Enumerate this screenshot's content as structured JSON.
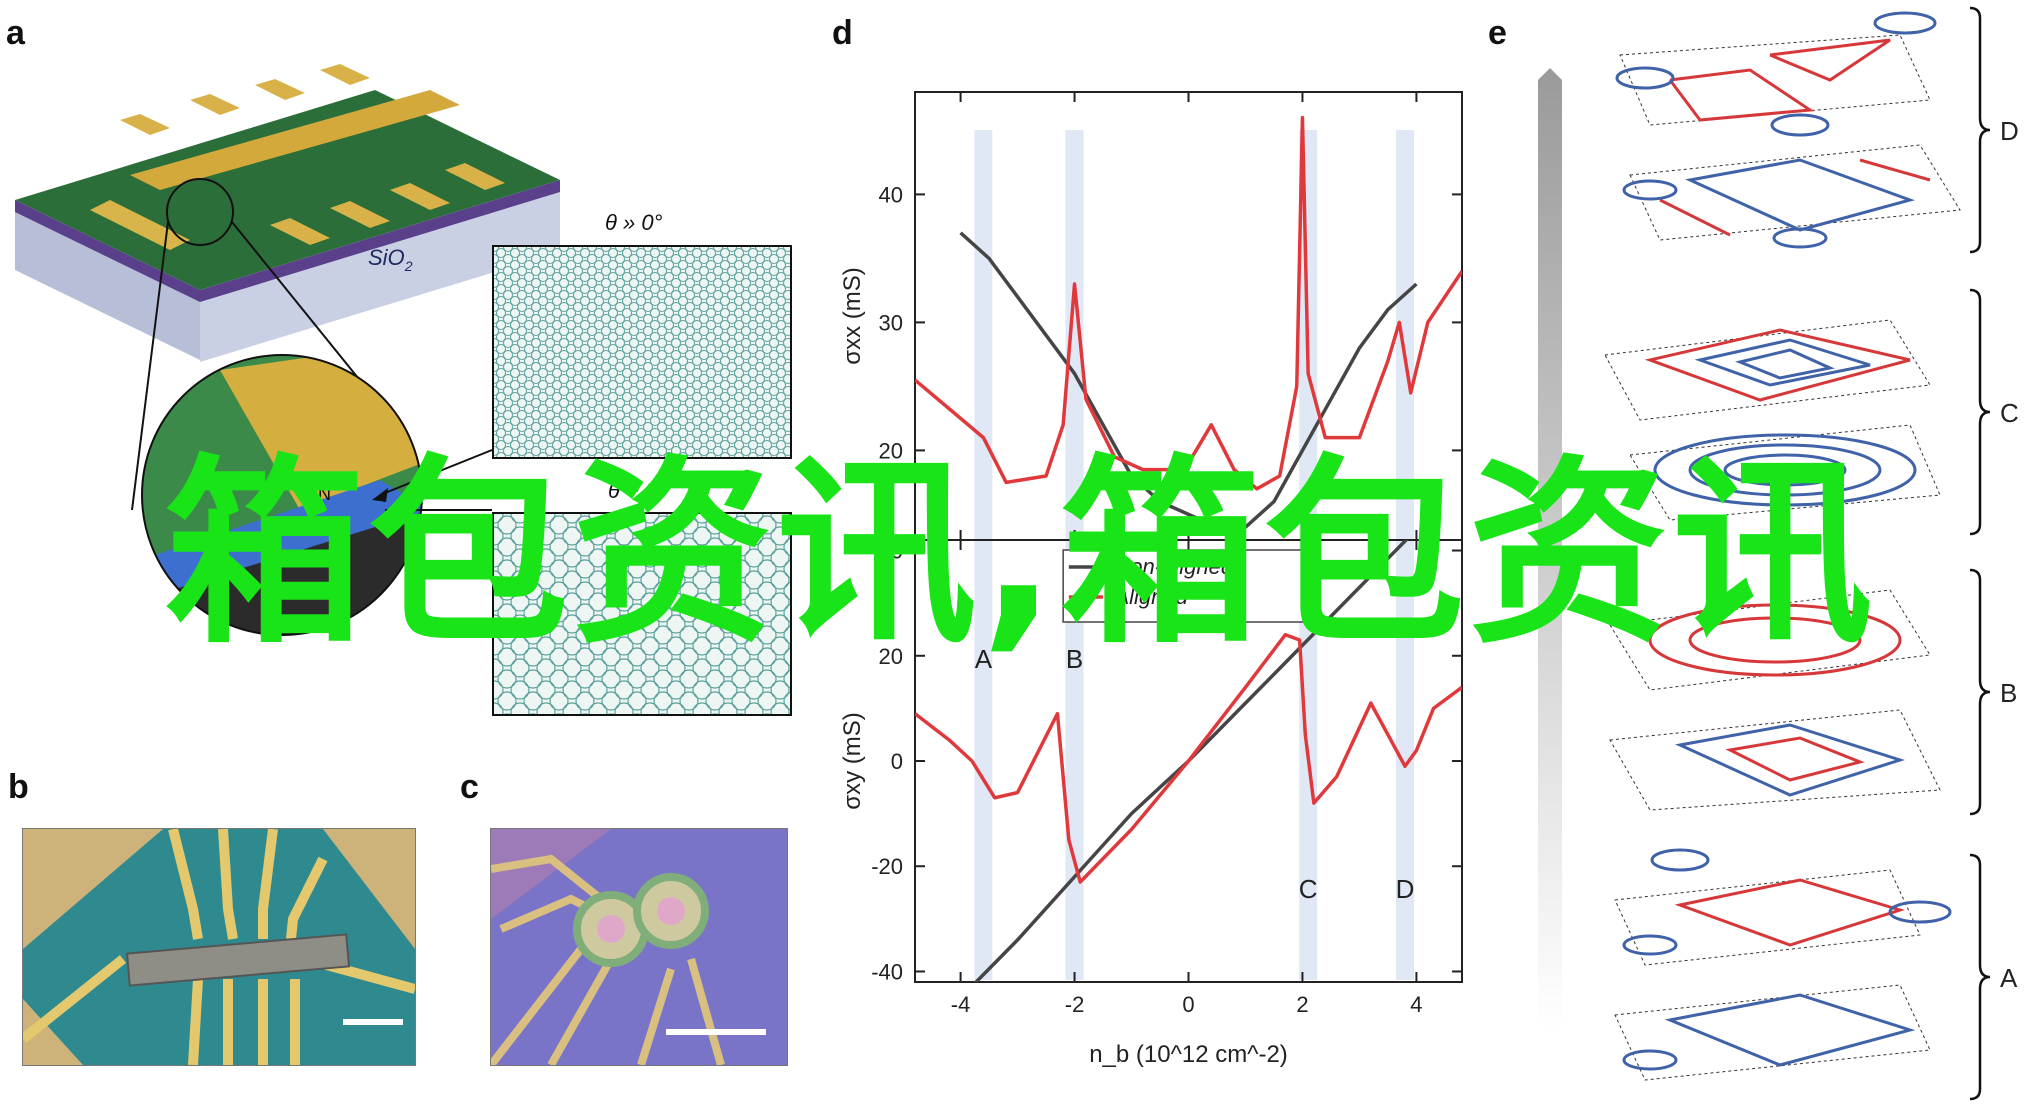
{
  "panels": {
    "a": {
      "letter": "a",
      "substrate_label": "SiO",
      "substrate_sub": "2",
      "zoom_labels": [
        "N",
        "r",
        "BN"
      ],
      "top_inset_title": "θ » 0°",
      "bottom_inset_title": "θ ~ 0°"
    },
    "b": {
      "letter": "b"
    },
    "c": {
      "letter": "c"
    },
    "d": {
      "letter": "d"
    },
    "e": {
      "letter": "e",
      "groups": [
        "D",
        "C",
        "B",
        "A"
      ]
    }
  },
  "legend": {
    "items": [
      "Non-aligned",
      "Aligned"
    ]
  },
  "watermark": "箱包资讯,箱包资讯",
  "chart_data": [
    {
      "type": "line",
      "title": "",
      "xlabel": "n_b (10^12 cm^-2)",
      "ylabel": "σxx (mS)",
      "xlim": [
        -4.8,
        4.8
      ],
      "ylim": [
        13,
        48
      ],
      "yticks": [
        20,
        30,
        40
      ],
      "series": [
        {
          "name": "Non-aligned",
          "color": "#454545",
          "x": [
            -4.0,
            -3.5,
            -3.0,
            -2.5,
            -2.0,
            -1.5,
            -1.0,
            -0.5,
            0.0,
            0.5,
            1.0,
            1.5,
            2.0,
            2.5,
            3.0,
            3.5,
            4.0
          ],
          "y": [
            37,
            35,
            32,
            29,
            26,
            22,
            18,
            16,
            15,
            14,
            14,
            16,
            20,
            24,
            28,
            31,
            33
          ]
        },
        {
          "name": "Aligned",
          "color": "#e0393c",
          "x": [
            -4.8,
            -4.0,
            -3.6,
            -3.2,
            -2.5,
            -2.2,
            -2.0,
            -1.8,
            -1.3,
            -0.8,
            -0.3,
            0.0,
            0.4,
            0.8,
            1.2,
            1.6,
            1.9,
            2.0,
            2.1,
            2.4,
            3.0,
            3.5,
            3.7,
            3.9,
            4.2,
            4.8
          ],
          "y": [
            25.5,
            22.5,
            21,
            17.5,
            18,
            22,
            33,
            24,
            19.5,
            18.5,
            18.5,
            19,
            22,
            18.5,
            17,
            18,
            25,
            46,
            26,
            21,
            21,
            27,
            30,
            24.5,
            30,
            34
          ]
        }
      ]
    },
    {
      "type": "line",
      "title": "",
      "xlabel": "n_b (10^12 cm^-2)",
      "ylabel": "σxy (mS)",
      "xlim": [
        -4.8,
        4.8
      ],
      "ylim": [
        -42,
        42
      ],
      "xticks": [
        -4,
        -2,
        0,
        2,
        4
      ],
      "yticks": [
        -40,
        -20,
        0,
        20,
        40
      ],
      "annotations": [
        "A",
        "B",
        "C",
        "D"
      ],
      "series": [
        {
          "name": "Non-aligned",
          "color": "#454545",
          "x": [
            -4.0,
            -3.0,
            -2.0,
            -1.0,
            0.0,
            1.0,
            2.0,
            3.0,
            4.0
          ],
          "y": [
            -45,
            -34,
            -22,
            -10,
            0,
            11,
            22,
            33,
            44
          ]
        },
        {
          "name": "Aligned",
          "color": "#e0393c",
          "x": [
            -4.8,
            -4.2,
            -3.8,
            -3.4,
            -3.0,
            -2.3,
            -2.1,
            -1.9,
            -1.0,
            0.0,
            1.0,
            1.7,
            1.95,
            2.05,
            2.2,
            2.6,
            3.2,
            3.6,
            3.8,
            4.0,
            4.3,
            4.8
          ],
          "y": [
            9,
            4,
            0,
            -7,
            -6,
            9,
            -15,
            -23,
            -13,
            0,
            14,
            24,
            23,
            5,
            -8,
            -3,
            11,
            3,
            -1,
            2,
            10,
            14
          ]
        }
      ]
    }
  ]
}
